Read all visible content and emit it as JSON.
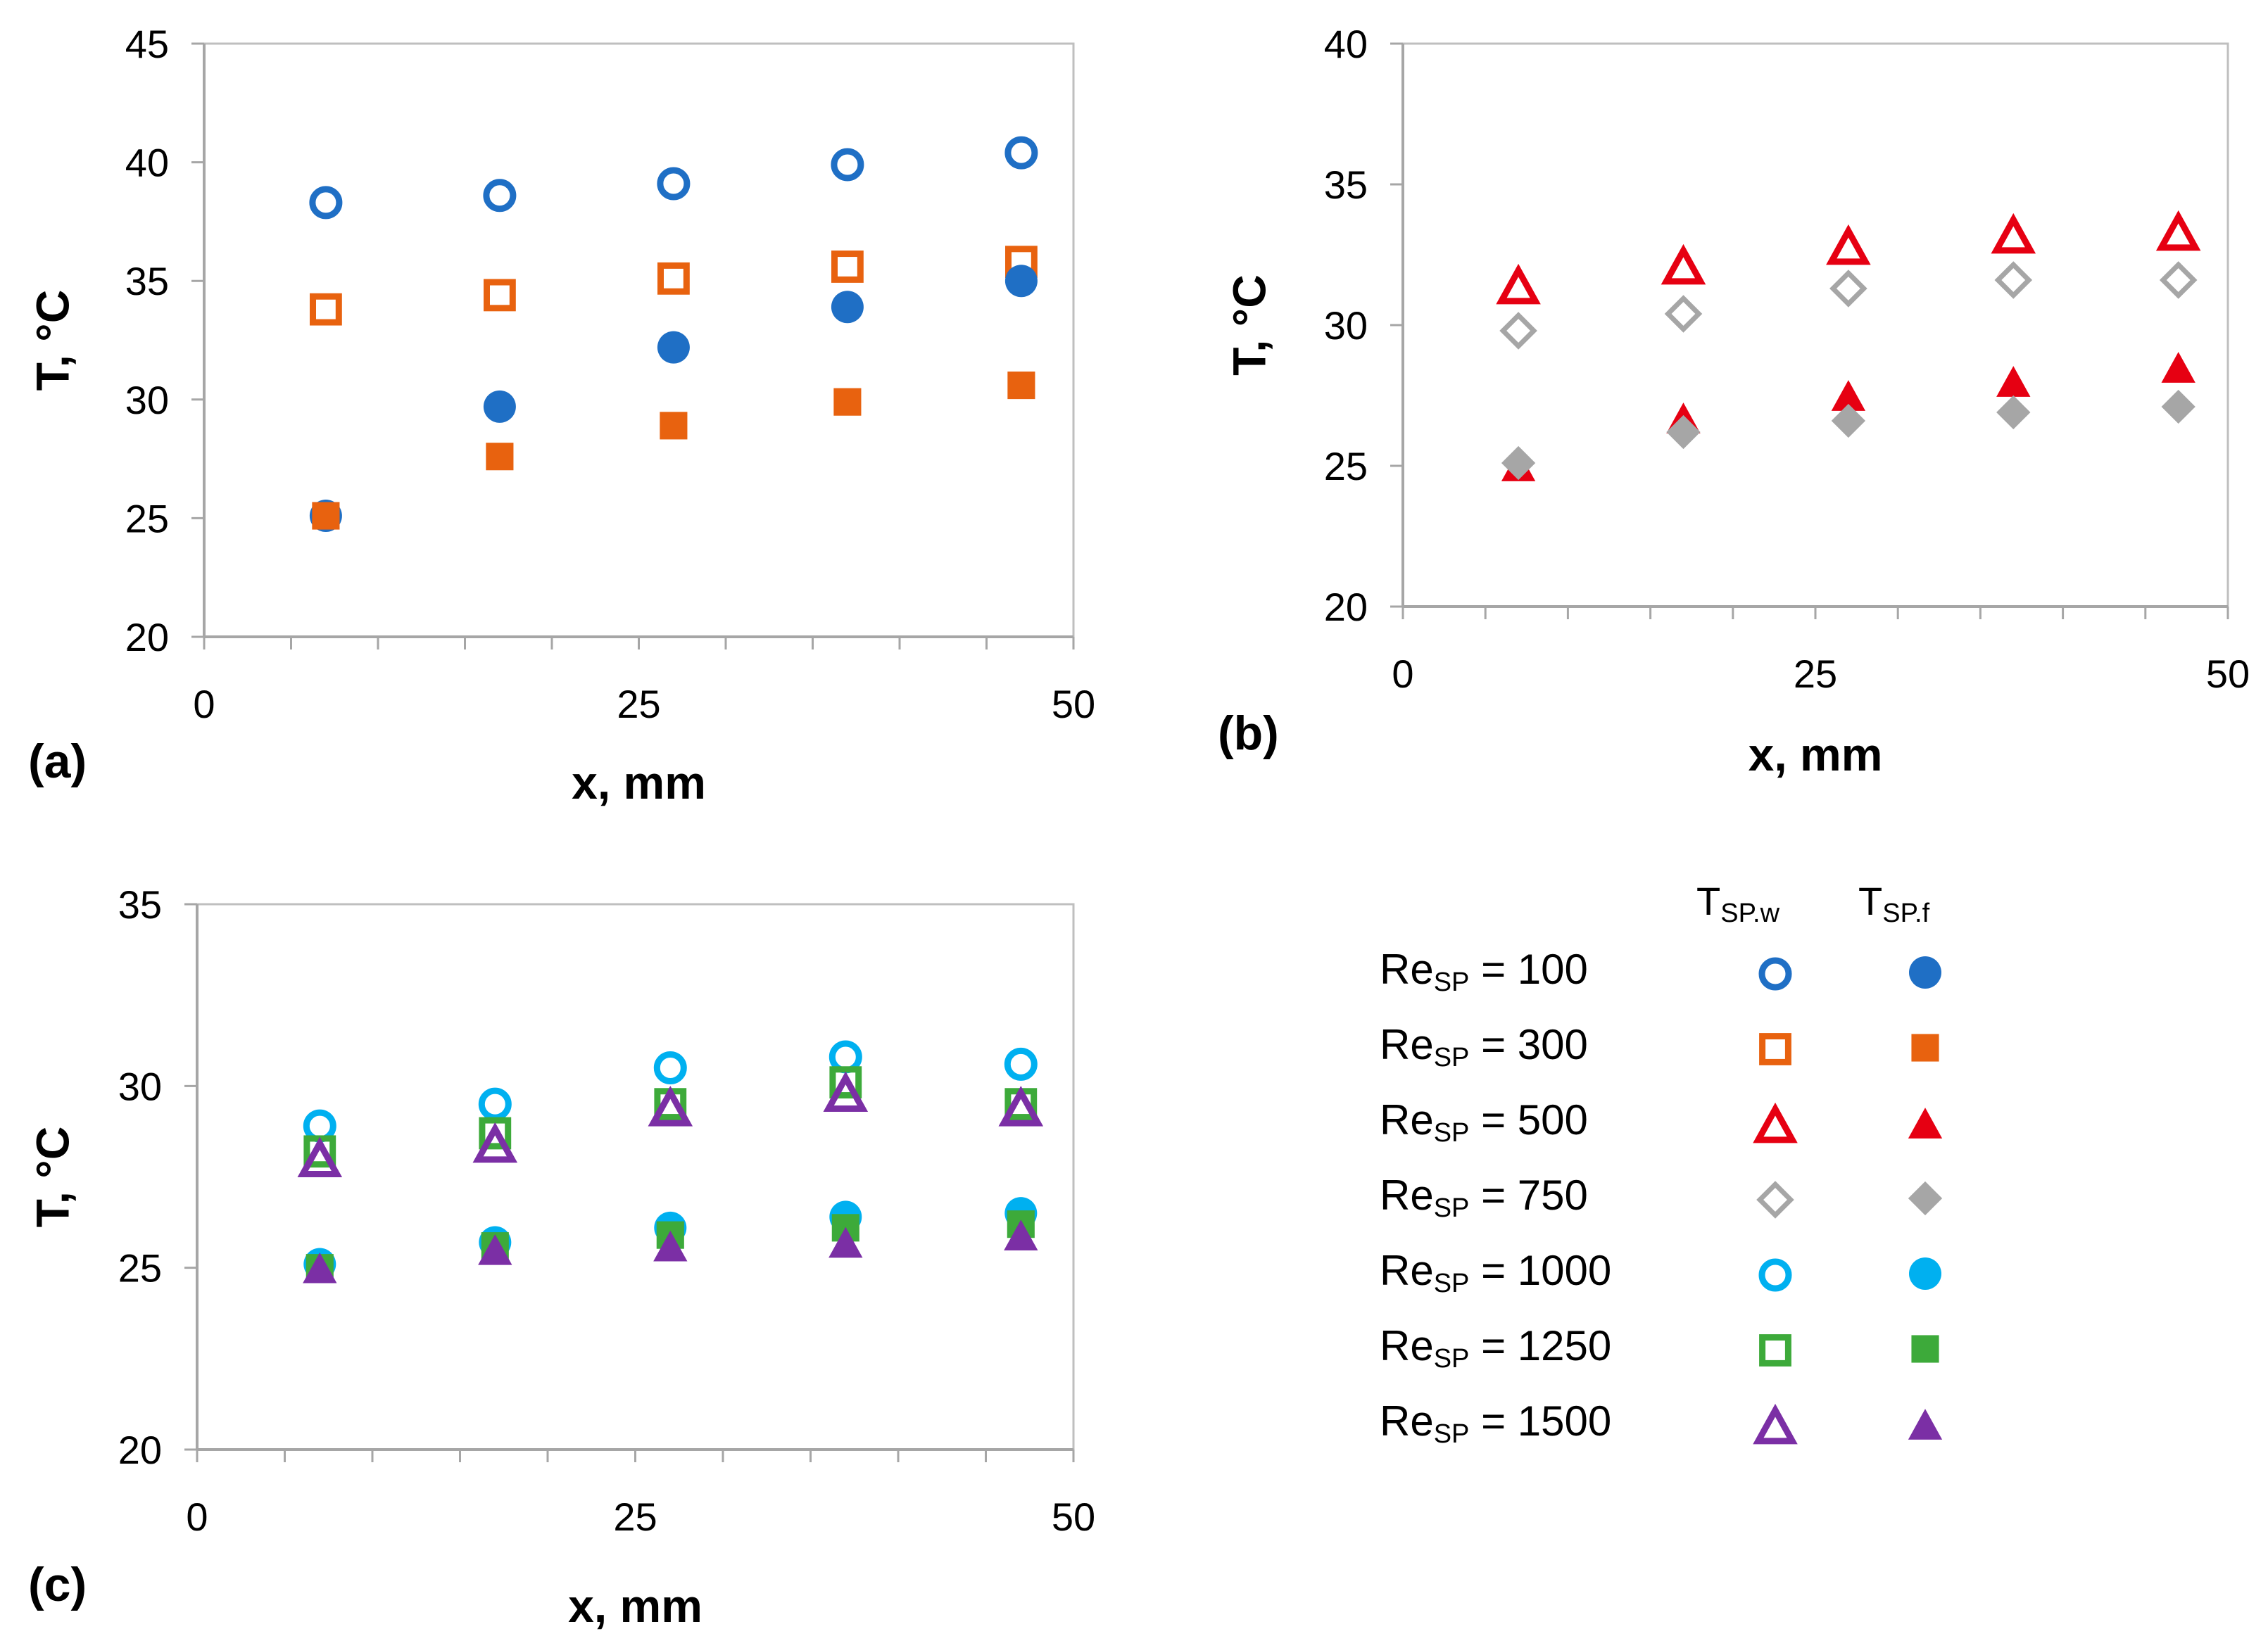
{
  "legend": {
    "header_wall": "TSP.w",
    "header_fluid": "TSP.f",
    "header_wall_main": "T",
    "header_wall_sub": "SP.w",
    "header_fluid_main": "T",
    "header_fluid_sub": "SP.f",
    "entries": [
      {
        "prefix": "Re",
        "sub": "SP",
        "value": " = 100",
        "label": "ReSP = 100",
        "color": "#1F6FC5",
        "shape": "circle"
      },
      {
        "prefix": "Re",
        "sub": "SP",
        "value": " = 300",
        "label": "ReSP = 300",
        "color": "#E8620F",
        "shape": "square"
      },
      {
        "prefix": "Re",
        "sub": "SP",
        "value": " = 500",
        "label": "ReSP = 500",
        "color": "#E60012",
        "shape": "triangle"
      },
      {
        "prefix": "Re",
        "sub": "SP",
        "value": " = 750",
        "label": "ReSP = 750",
        "color": "#A6A6A6",
        "shape": "diamond"
      },
      {
        "prefix": "Re",
        "sub": "SP",
        "value": " = 1000",
        "label": "ReSP = 1000",
        "color": "#00B0F0",
        "shape": "circle"
      },
      {
        "prefix": "Re",
        "sub": "SP",
        "value": " = 1250",
        "label": "ReSP = 1250",
        "color": "#3DAA3A",
        "shape": "square"
      },
      {
        "prefix": "Re",
        "sub": "SP",
        "value": " = 1500",
        "label": "ReSP = 1500",
        "color": "#7B2FA5",
        "shape": "triangle"
      }
    ]
  },
  "chart_data": [
    {
      "type": "scatter",
      "panel": "(a)",
      "xlabel": "x, mm",
      "ylabel": "T, °C",
      "xlim": [
        0,
        50
      ],
      "ylim": [
        20,
        45
      ],
      "xticks": [
        "0",
        "25",
        "50"
      ],
      "yticks": [
        "20",
        "25",
        "30",
        "35",
        "40",
        "45"
      ],
      "series": [
        {
          "name": "ReSP = 100 TSP.w",
          "color": "#1F6FC5",
          "marker": "circle",
          "filled": false,
          "x": [
            7,
            17,
            27,
            37,
            47
          ],
          "y": [
            38.3,
            38.6,
            39.1,
            39.9,
            40.4
          ]
        },
        {
          "name": "ReSP = 300 TSP.w",
          "color": "#E8620F",
          "marker": "square",
          "filled": false,
          "x": [
            7,
            17,
            27,
            37,
            47
          ],
          "y": [
            33.8,
            34.4,
            35.1,
            35.6,
            35.8
          ]
        },
        {
          "name": "ReSP = 100 TSP.f",
          "color": "#1F6FC5",
          "marker": "circle",
          "filled": true,
          "x": [
            7,
            17,
            27,
            37,
            47
          ],
          "y": [
            25.1,
            29.7,
            32.2,
            33.9,
            35.0
          ]
        },
        {
          "name": "ReSP = 300 TSP.f",
          "color": "#E8620F",
          "marker": "square",
          "filled": true,
          "x": [
            7,
            17,
            27,
            37,
            47
          ],
          "y": [
            25.1,
            27.6,
            28.9,
            29.9,
            30.6
          ]
        }
      ]
    },
    {
      "type": "scatter",
      "panel": "(b)",
      "xlabel": "x, mm",
      "ylabel": "T, °C",
      "xlim": [
        0,
        50
      ],
      "ylim": [
        20,
        40
      ],
      "xticks": [
        "0",
        "25",
        "50"
      ],
      "yticks": [
        "20",
        "25",
        "30",
        "35",
        "40"
      ],
      "series": [
        {
          "name": "ReSP = 500 TSP.w",
          "color": "#E60012",
          "marker": "triangle",
          "filled": false,
          "x": [
            7,
            17,
            27,
            37,
            47
          ],
          "y": [
            31.4,
            32.1,
            32.8,
            33.2,
            33.3
          ]
        },
        {
          "name": "ReSP = 750 TSP.w",
          "color": "#A6A6A6",
          "marker": "diamond",
          "filled": false,
          "x": [
            7,
            17,
            27,
            37,
            47
          ],
          "y": [
            29.8,
            30.4,
            31.3,
            31.6,
            31.6
          ]
        },
        {
          "name": "ReSP = 500 TSP.f",
          "color": "#E60012",
          "marker": "triangle",
          "filled": true,
          "x": [
            7,
            17,
            27,
            37,
            47
          ],
          "y": [
            25.0,
            26.7,
            27.5,
            28.0,
            28.5
          ]
        },
        {
          "name": "ReSP = 750 TSP.f",
          "color": "#A6A6A6",
          "marker": "diamond",
          "filled": true,
          "x": [
            7,
            17,
            27,
            37,
            47
          ],
          "y": [
            25.1,
            26.2,
            26.6,
            26.9,
            27.1
          ]
        }
      ]
    },
    {
      "type": "scatter",
      "panel": "(c)",
      "xlabel": "x, mm",
      "ylabel": "T, °C",
      "xlim": [
        0,
        50
      ],
      "ylim": [
        20,
        35
      ],
      "xticks": [
        "0",
        "25",
        "50"
      ],
      "yticks": [
        "20",
        "25",
        "30",
        "35"
      ],
      "series": [
        {
          "name": "ReSP = 1000 TSP.w",
          "color": "#00B0F0",
          "marker": "circle",
          "filled": false,
          "x": [
            7,
            17,
            27,
            37,
            47
          ],
          "y": [
            28.9,
            29.5,
            30.5,
            30.8,
            30.6
          ]
        },
        {
          "name": "ReSP = 1250 TSP.w",
          "color": "#3DAA3A",
          "marker": "square",
          "filled": false,
          "x": [
            7,
            17,
            27,
            37,
            47
          ],
          "y": [
            28.2,
            28.7,
            29.5,
            30.1,
            29.5
          ]
        },
        {
          "name": "ReSP = 1500 TSP.w",
          "color": "#7B2FA5",
          "marker": "triangle",
          "filled": false,
          "x": [
            7,
            17,
            27,
            37,
            47
          ],
          "y": [
            28.0,
            28.4,
            29.4,
            29.8,
            29.4
          ]
        },
        {
          "name": "ReSP = 1000 TSP.f",
          "color": "#00B0F0",
          "marker": "circle",
          "filled": true,
          "x": [
            7,
            17,
            27,
            37,
            47
          ],
          "y": [
            25.1,
            25.7,
            26.1,
            26.4,
            26.5
          ]
        },
        {
          "name": "ReSP = 1250 TSP.f",
          "color": "#3DAA3A",
          "marker": "square",
          "filled": true,
          "x": [
            7,
            17,
            27,
            37,
            47
          ],
          "y": [
            25.0,
            25.6,
            25.9,
            26.1,
            26.2
          ]
        },
        {
          "name": "ReSP = 1500 TSP.f",
          "color": "#7B2FA5",
          "marker": "triangle",
          "filled": true,
          "x": [
            7,
            17,
            27,
            37,
            47
          ],
          "y": [
            25.0,
            25.5,
            25.6,
            25.7,
            25.9
          ]
        }
      ]
    }
  ]
}
